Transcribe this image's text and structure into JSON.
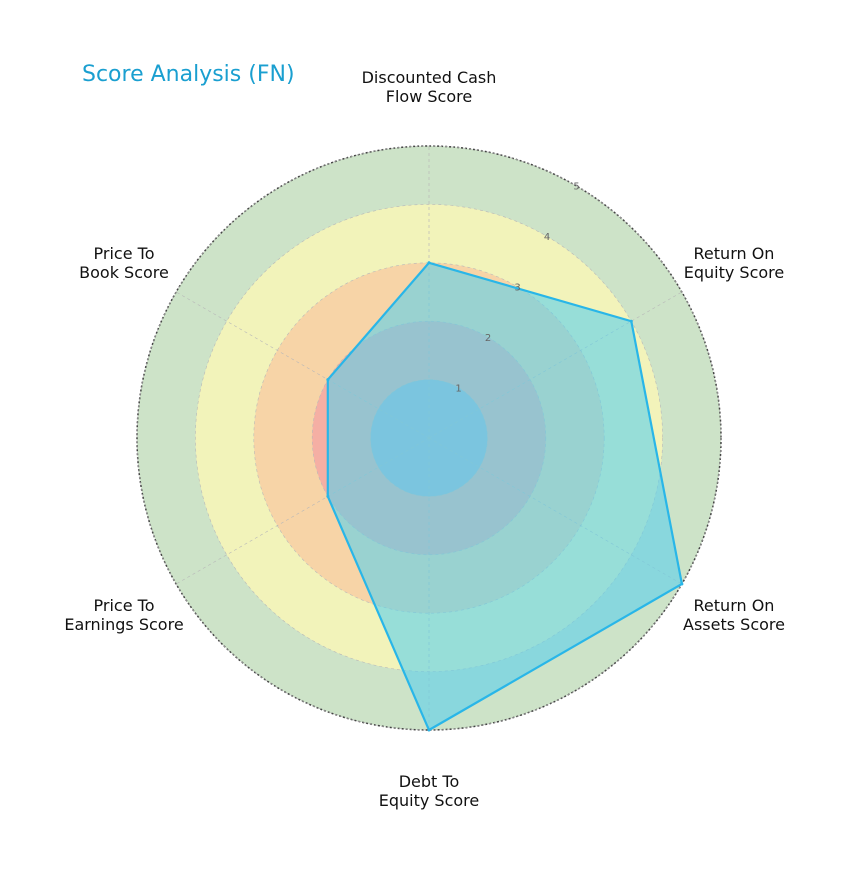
{
  "chart_data": {
    "type": "radar",
    "title": "Score Analysis (FN)",
    "axes": [
      [
        "Discounted Cash",
        "Flow Score"
      ],
      [
        "Return On",
        "Equity Score"
      ],
      [
        "Return On",
        "Assets Score"
      ],
      [
        "Debt To",
        "Equity Score"
      ],
      [
        "Price To",
        "Earnings Score"
      ],
      [
        "Price To",
        "Book Score"
      ]
    ],
    "values": [
      3,
      4,
      5,
      5,
      2,
      2
    ],
    "rlim": [
      0,
      5
    ],
    "ticks": [
      "1",
      "2",
      "3",
      "4",
      "5"
    ],
    "bands": [
      {
        "from": 0,
        "to": 1,
        "color": "#8fb3d9"
      },
      {
        "from": 1,
        "to": 2,
        "color": "#f4a3a3"
      },
      {
        "from": 2,
        "to": 3,
        "color": "#f8c9a0"
      },
      {
        "from": 3,
        "to": 4,
        "color": "#fdf8b5"
      },
      {
        "from": 4,
        "to": 5,
        "color": "#bcd9b5"
      }
    ],
    "series_color": "#29b6e8",
    "series_fill": "#5fd0ea",
    "grid": true
  }
}
